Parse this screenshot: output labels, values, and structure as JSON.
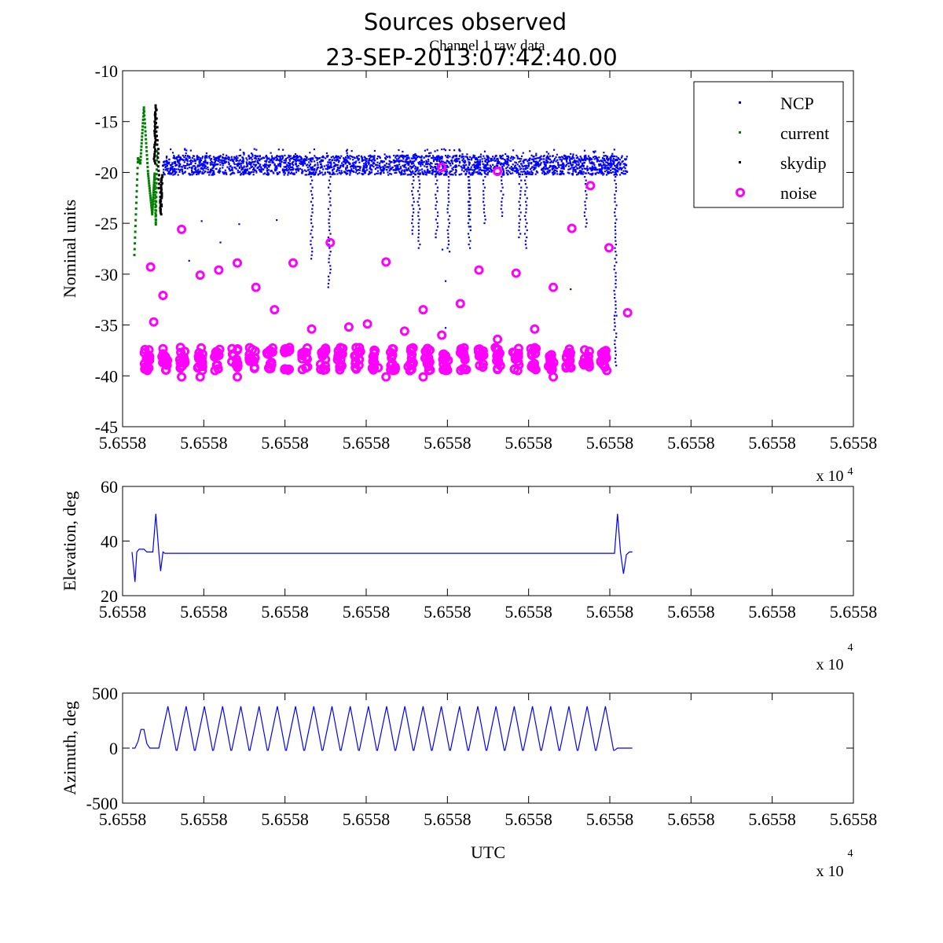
{
  "figure": {
    "title_line1": "Sources observed",
    "title_line2": "23-SEP-2013:07:42:40.00",
    "subtitle": "Channel 1 raw data"
  },
  "colors": {
    "ncp": "#0000ff",
    "current": "#008000",
    "skydip": "#000000",
    "noise": "#ff00ff",
    "line": "#0000ff"
  },
  "chart_data": [
    {
      "type": "scatter",
      "title": "Channel 1 raw data",
      "xlabel": "",
      "ylabel": "Nominal units",
      "ylim": [
        -45,
        -10
      ],
      "yticks": [
        "-10",
        "-15",
        "-20",
        "-25",
        "-30",
        "-35",
        "-40",
        "-45"
      ],
      "xticks": [
        "5.6558",
        "5.6558",
        "5.6558",
        "5.6558",
        "5.6558",
        "5.6558",
        "5.6558",
        "5.6558",
        "5.6558",
        "5.6558"
      ],
      "x_exponent_label": "x 10",
      "x_exponent": "4",
      "legend_position": "top-right",
      "legend": [
        "NCP",
        "current",
        "skydip",
        "noise"
      ],
      "series": [
        {
          "name": "NCP",
          "marker": "dot",
          "baseline": -19.2,
          "spread": 1.2,
          "dips": [
            [
              0.3,
              -28.5
            ],
            [
              0.33,
              -31.5
            ],
            [
              0.47,
              -26.0
            ],
            [
              0.48,
              -27.5
            ],
            [
              0.51,
              -26.5
            ],
            [
              0.53,
              -28.0
            ],
            [
              0.565,
              -27.5
            ],
            [
              0.565,
              -25.5
            ],
            [
              0.59,
              -25.0
            ],
            [
              0.62,
              -24.5
            ],
            [
              0.65,
              -26.5
            ],
            [
              0.66,
              -27.5
            ],
            [
              0.76,
              -25.5
            ],
            [
              0.81,
              -39.0
            ]
          ]
        },
        {
          "name": "current",
          "marker": "dot",
          "values_y": [
            -28.0,
            -18.5,
            -19.0,
            -13.5,
            -20.0,
            -24.0,
            -20.0,
            -25.0,
            -17.5
          ]
        },
        {
          "name": "skydip",
          "marker": "dot",
          "values_y": [
            -19.0,
            -13.3,
            -24.0,
            -20.0
          ]
        },
        {
          "name": "noise",
          "marker": "circle",
          "points": [
            [
              0.03,
              -29.3
            ],
            [
              0.035,
              -34.7
            ],
            [
              0.05,
              -32.1
            ],
            [
              0.08,
              -25.6
            ],
            [
              0.11,
              -30.1
            ],
            [
              0.14,
              -29.6
            ],
            [
              0.17,
              -28.9
            ],
            [
              0.2,
              -31.3
            ],
            [
              0.23,
              -33.5
            ],
            [
              0.26,
              -28.9
            ],
            [
              0.29,
              -35.4
            ],
            [
              0.32,
              -26.9
            ],
            [
              0.35,
              -35.2
            ],
            [
              0.38,
              -34.9
            ],
            [
              0.41,
              -28.8
            ],
            [
              0.44,
              -35.6
            ],
            [
              0.47,
              -33.5
            ],
            [
              0.5,
              -19.5
            ],
            [
              0.5,
              -36.0
            ],
            [
              0.53,
              -32.9
            ],
            [
              0.56,
              -29.6
            ],
            [
              0.59,
              -19.9
            ],
            [
              0.59,
              -36.4
            ],
            [
              0.62,
              -29.9
            ],
            [
              0.65,
              -35.4
            ],
            [
              0.68,
              -31.3
            ],
            [
              0.71,
              -25.5
            ],
            [
              0.74,
              -21.3
            ],
            [
              0.77,
              -27.4
            ],
            [
              0.8,
              -33.8
            ],
            [
              0.08,
              -40.1
            ],
            [
              0.11,
              -40.1
            ],
            [
              0.17,
              -40.1
            ],
            [
              0.41,
              -40.1
            ],
            [
              0.47,
              -40.1
            ],
            [
              0.68,
              -40.1
            ]
          ],
          "clusters_y": [
            -37.0,
            -40.0
          ]
        }
      ]
    },
    {
      "type": "line",
      "title": "",
      "xlabel": "",
      "ylabel": "Elevation, deg",
      "ylim": [
        20,
        60
      ],
      "yticks": [
        "60",
        "40",
        "20"
      ],
      "xticks": [
        "5.6558",
        "5.6558",
        "5.6558",
        "5.6558",
        "5.6558",
        "5.6558",
        "5.6558",
        "5.6558",
        "5.6558",
        "5.6558"
      ],
      "x_exponent_label": "x 10",
      "x_exponent": "4",
      "series": [
        {
          "name": "",
          "x": [
            0.0,
            0.005,
            0.008,
            0.012,
            0.02,
            0.025,
            0.03,
            0.035,
            0.04,
            0.045,
            0.048,
            0.052,
            0.055,
            0.06,
            0.062,
            0.07,
            0.8,
            0.81,
            0.815,
            0.82,
            0.825,
            0.83,
            0.835,
            0.84
          ],
          "y": [
            36,
            25,
            36,
            37,
            37,
            36,
            36,
            36,
            50,
            36,
            29,
            36,
            35.5,
            35.5,
            35.5,
            35.5,
            35.5,
            35.5,
            50,
            36,
            28,
            35,
            36,
            36
          ]
        }
      ]
    },
    {
      "type": "line",
      "title": "",
      "xlabel": "UTC",
      "ylabel": "Azimuth, deg",
      "ylim": [
        -500,
        500
      ],
      "yticks": [
        "500",
        "0",
        "-500"
      ],
      "xticks": [
        "5.6558",
        "5.6558",
        "5.6558",
        "5.6558",
        "5.6558",
        "5.6558",
        "5.6558",
        "5.6558",
        "5.6558",
        "5.6558"
      ],
      "x_exponent_label": "x 10",
      "x_exponent": "4",
      "series": [
        {
          "name": "",
          "x_start": 0.0,
          "x_end": 0.84,
          "bump": [
            0.02,
            170
          ],
          "scan_start": 0.045,
          "scan_end": 0.81,
          "cycles": 25,
          "peak": 380,
          "trough": -20
        }
      ]
    }
  ]
}
